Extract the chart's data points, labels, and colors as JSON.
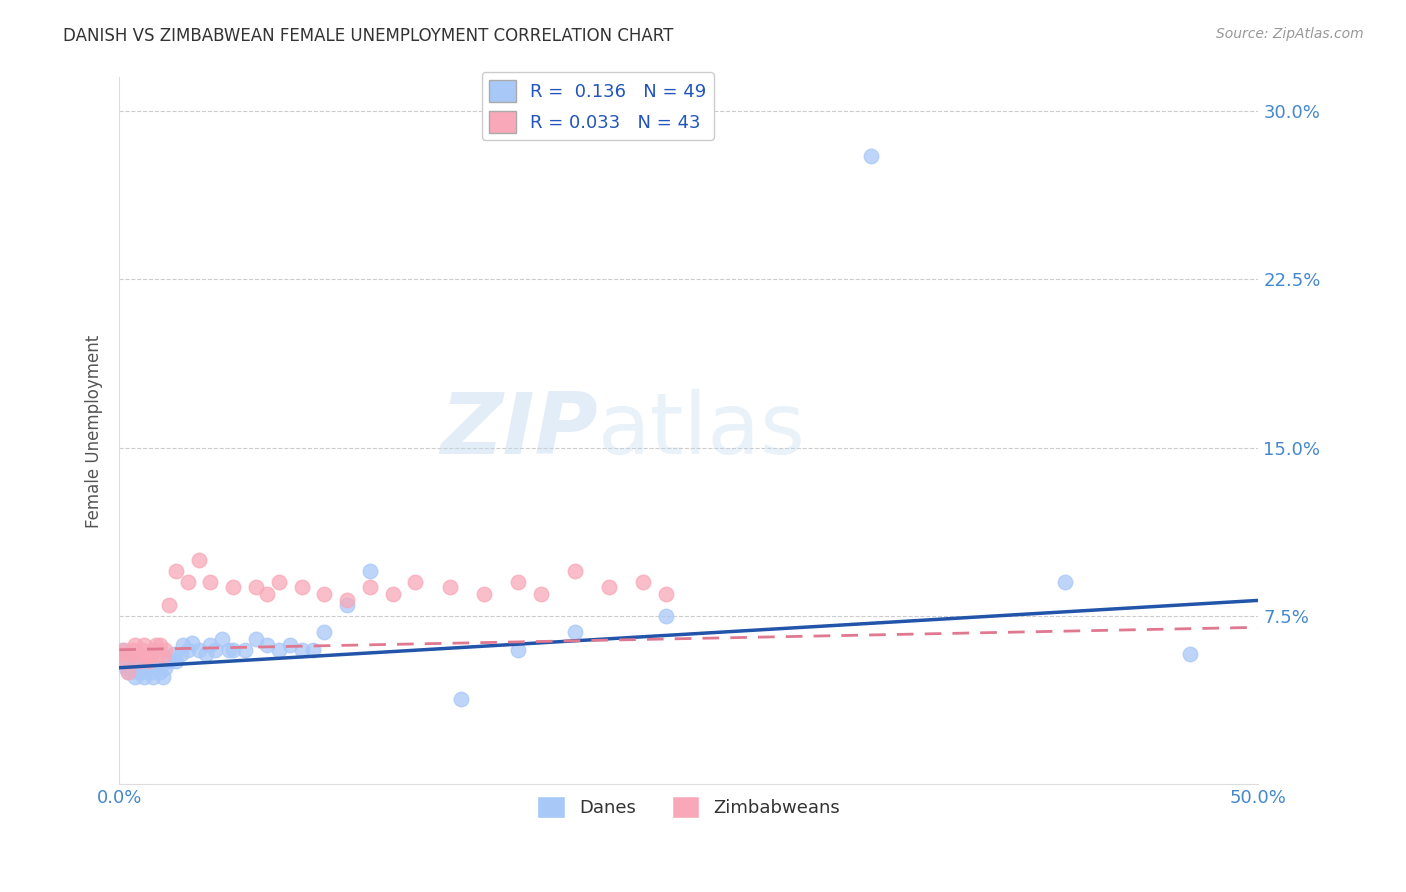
{
  "title": "DANISH VS ZIMBABWEAN FEMALE UNEMPLOYMENT CORRELATION CHART",
  "source": "Source: ZipAtlas.com",
  "ylabel": "Female Unemployment",
  "danes_color": "#a8c8f8",
  "zimbabweans_color": "#f8a8b8",
  "danes_line_color": "#2255aa",
  "zimbabweans_line_color": "#e07890",
  "danes_R": 0.136,
  "danes_N": 49,
  "zimbabweans_R": 0.033,
  "zimbabweans_N": 43,
  "legend_label_danes": "Danes",
  "legend_label_zimbabweans": "Zimbabweans",
  "watermark_zip": "ZIP",
  "watermark_atlas": "atlas",
  "xlim": [
    0.0,
    0.5
  ],
  "ylim": [
    0.0,
    0.315
  ],
  "danes_x": [
    0.001,
    0.002,
    0.003,
    0.004,
    0.005,
    0.006,
    0.007,
    0.008,
    0.009,
    0.01,
    0.011,
    0.012,
    0.014,
    0.015,
    0.016,
    0.018,
    0.019,
    0.02,
    0.022,
    0.024,
    0.025,
    0.027,
    0.028,
    0.03,
    0.032,
    0.035,
    0.038,
    0.04,
    0.042,
    0.045,
    0.048,
    0.05,
    0.055,
    0.06,
    0.065,
    0.07,
    0.075,
    0.08,
    0.085,
    0.09,
    0.1,
    0.11,
    0.15,
    0.175,
    0.2,
    0.24,
    0.33,
    0.415,
    0.47
  ],
  "danes_y": [
    0.06,
    0.057,
    0.052,
    0.05,
    0.053,
    0.055,
    0.048,
    0.05,
    0.052,
    0.05,
    0.048,
    0.052,
    0.05,
    0.048,
    0.052,
    0.05,
    0.048,
    0.052,
    0.055,
    0.058,
    0.055,
    0.058,
    0.062,
    0.06,
    0.063,
    0.06,
    0.058,
    0.062,
    0.06,
    0.065,
    0.06,
    0.06,
    0.06,
    0.065,
    0.062,
    0.06,
    0.062,
    0.06,
    0.06,
    0.068,
    0.08,
    0.095,
    0.038,
    0.06,
    0.068,
    0.075,
    0.28,
    0.09,
    0.058
  ],
  "zimbabweans_x": [
    0.001,
    0.002,
    0.003,
    0.004,
    0.005,
    0.006,
    0.007,
    0.008,
    0.009,
    0.01,
    0.011,
    0.012,
    0.013,
    0.014,
    0.015,
    0.016,
    0.017,
    0.018,
    0.019,
    0.02,
    0.022,
    0.025,
    0.03,
    0.035,
    0.04,
    0.05,
    0.06,
    0.065,
    0.07,
    0.08,
    0.09,
    0.1,
    0.11,
    0.12,
    0.13,
    0.145,
    0.16,
    0.175,
    0.185,
    0.2,
    0.215,
    0.23,
    0.24
  ],
  "zimbabweans_y": [
    0.058,
    0.06,
    0.055,
    0.05,
    0.058,
    0.06,
    0.062,
    0.058,
    0.055,
    0.06,
    0.062,
    0.057,
    0.055,
    0.058,
    0.06,
    0.062,
    0.058,
    0.062,
    0.057,
    0.06,
    0.08,
    0.095,
    0.09,
    0.1,
    0.09,
    0.088,
    0.088,
    0.085,
    0.09,
    0.088,
    0.085,
    0.082,
    0.088,
    0.085,
    0.09,
    0.088,
    0.085,
    0.09,
    0.085,
    0.095,
    0.088,
    0.09,
    0.085
  ],
  "danes_trend_x": [
    0.0,
    0.5
  ],
  "danes_trend_y": [
    0.052,
    0.082
  ],
  "zimbabweans_trend_x": [
    0.0,
    0.5
  ],
  "zimbabweans_trend_y": [
    0.06,
    0.07
  ]
}
